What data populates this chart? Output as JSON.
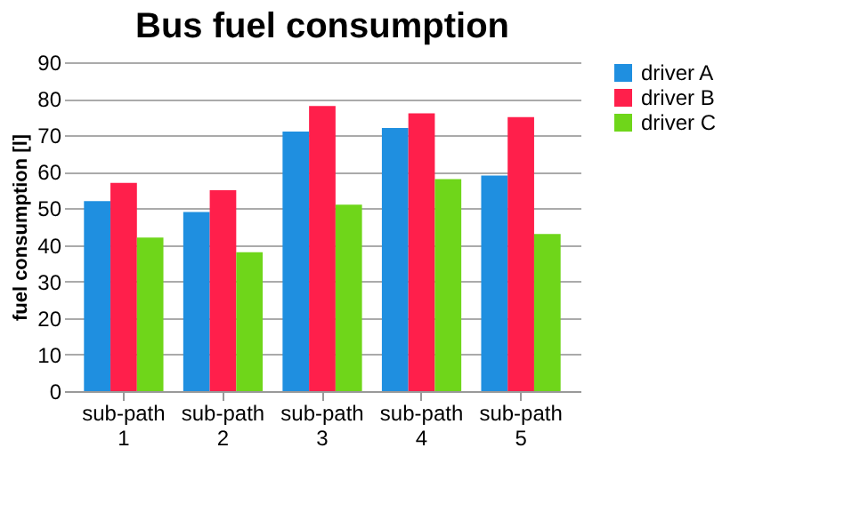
{
  "chart_data": {
    "type": "bar",
    "title": "Bus fuel consumption",
    "ylabel": "fuel consumption [l]",
    "categories": [
      "sub-path 1",
      "sub-path 2",
      "sub-path 3",
      "sub-path 4",
      "sub-path 5"
    ],
    "series": [
      {
        "name": "driver A",
        "color": "#1f8fe0",
        "values": [
          52,
          49,
          71,
          72,
          59
        ]
      },
      {
        "name": "driver B",
        "color": "#ff1f4b",
        "values": [
          57,
          55,
          78,
          76,
          75
        ]
      },
      {
        "name": "driver C",
        "color": "#6fd61a",
        "values": [
          42,
          38,
          51,
          58,
          43
        ]
      }
    ],
    "ylim": [
      0,
      90
    ],
    "yticks": [
      0,
      10,
      20,
      30,
      40,
      50,
      60,
      70,
      80,
      90
    ],
    "grid": "y",
    "legend": "right"
  }
}
